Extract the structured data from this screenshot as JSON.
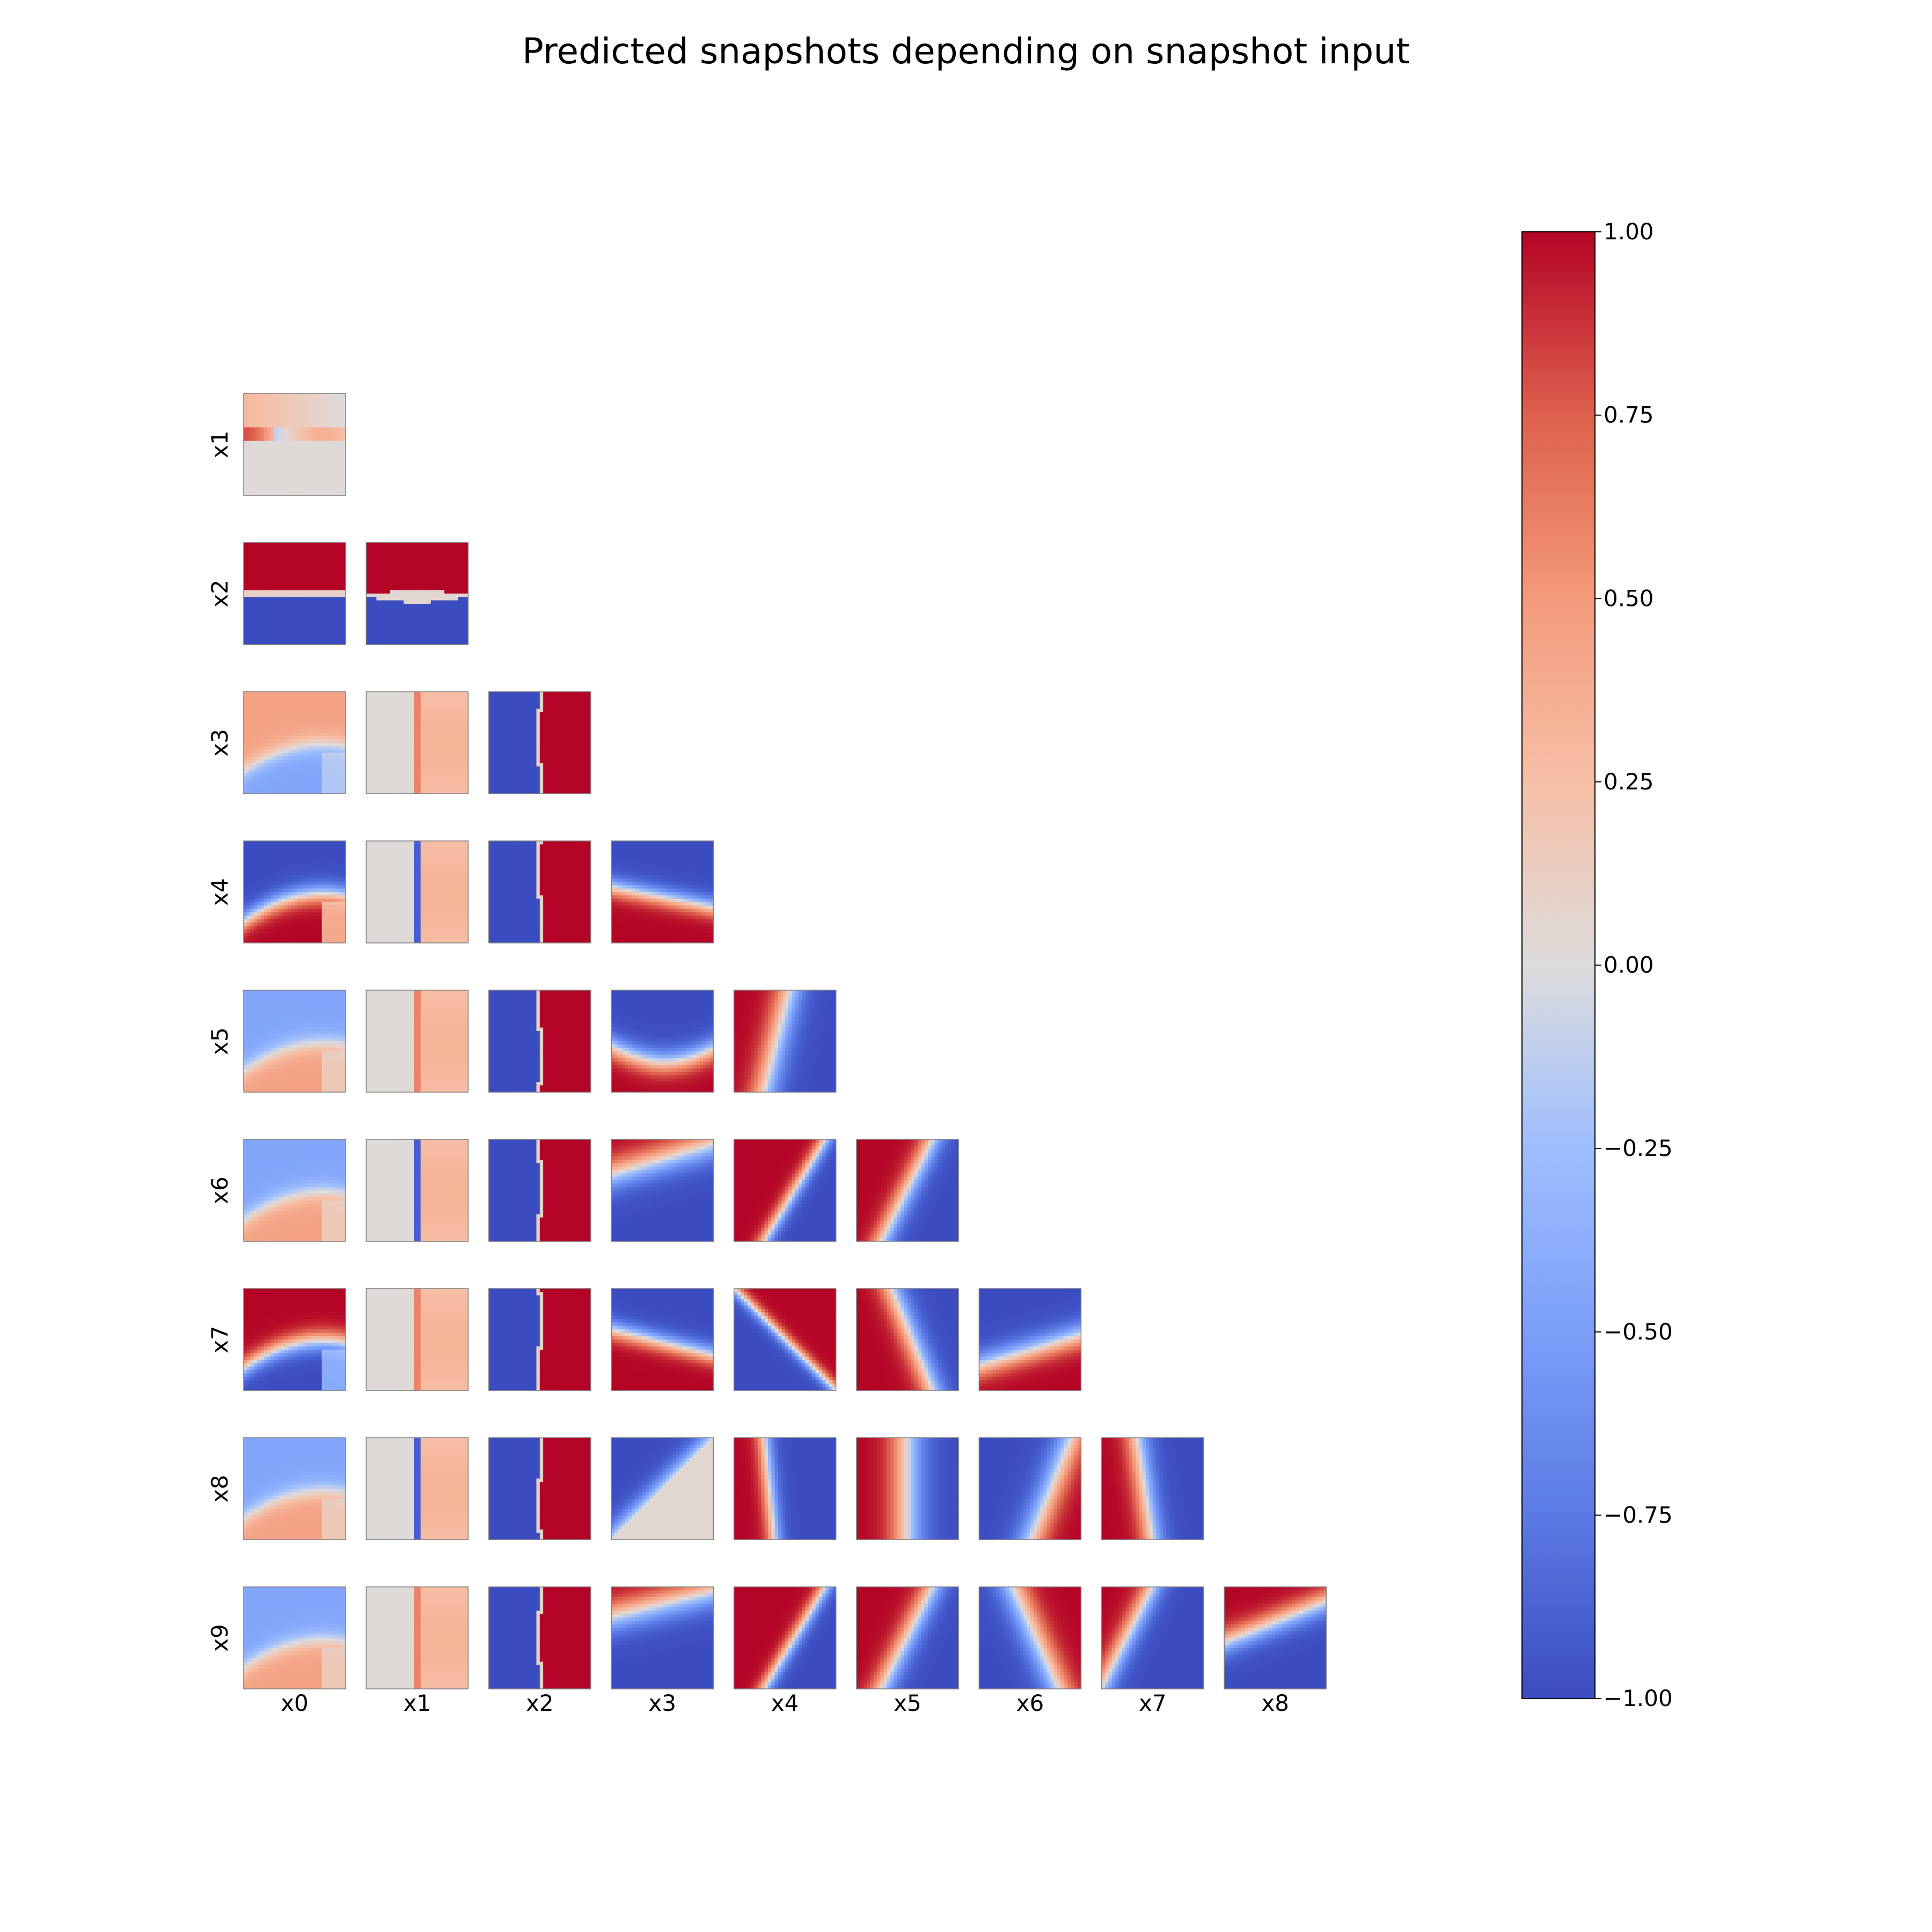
{
  "chart_data": {
    "type": "heatmap",
    "title": "Predicted snapshots depending on snapshot input",
    "layout": "lower-triangular grid of 2D heatmaps (row variable vs column variable)",
    "row_labels": [
      "x1",
      "x2",
      "x3",
      "x4",
      "x5",
      "x6",
      "x7",
      "x8",
      "x9"
    ],
    "col_labels": [
      "x0",
      "x1",
      "x2",
      "x3",
      "x4",
      "x5",
      "x6",
      "x7",
      "x8"
    ],
    "colormap": "coolwarm",
    "colorbar": {
      "vmin": -1.0,
      "vmax": 1.0,
      "ticks": [
        "1.00",
        "0.75",
        "0.50",
        "0.25",
        "0.00",
        "−0.25",
        "−0.50",
        "−0.75",
        "−1.00"
      ],
      "tick_values": [
        1.0,
        0.75,
        0.5,
        0.25,
        0.0,
        -0.25,
        -0.5,
        -0.75,
        -1.0
      ],
      "placement": "right"
    },
    "colors": {
      "low": "#3b4cc0",
      "mid": "#dddcdc",
      "high": "#b40426"
    }
  }
}
